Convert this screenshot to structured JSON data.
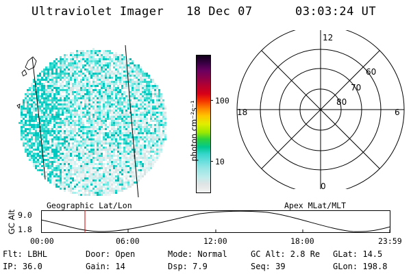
{
  "header": {
    "instrument": "Ultraviolet Imager",
    "date": "18 Dec 07",
    "time": "03:03:24 UT"
  },
  "image_panel": {
    "caption": "Geographic Lat/Lon",
    "pixel_palette": [
      "#00c8c0",
      "#30d8cc",
      "#52e2d8",
      "#7eeae6",
      "#a8f0ee",
      "#cdf4f2",
      "#e4f2f2",
      "#d8e4e4",
      "#f0f4f4",
      "#14b8ac"
    ]
  },
  "colorbar": {
    "unit_label": "photon cm⁻²s⁻¹",
    "ticks": [
      "100",
      "10"
    ],
    "colors": [
      "#f2f2f2",
      "#e0e4e4",
      "#c0ecec",
      "#9ce6e6",
      "#6ee0de",
      "#36d6cc",
      "#00c890",
      "#30d238",
      "#9ee800",
      "#e2ee00",
      "#ffc400",
      "#ff8800",
      "#f53200",
      "#d80018",
      "#b40030",
      "#900048",
      "#6a0060",
      "#3c0046",
      "#100018"
    ]
  },
  "polar_panel": {
    "caption": "Apex MLat/MLT",
    "mlt_labels": {
      "top": "12",
      "left": "18",
      "right": "6",
      "bottom": "0"
    },
    "lat_labels": [
      "60",
      "70",
      "80"
    ]
  },
  "timeline": {
    "ylabel": "GC Alt",
    "ytick_top": "9.0",
    "ytick_bottom": "1.8",
    "xticks": [
      "00:00",
      "06:00",
      "12:00",
      "18:00",
      "23:59"
    ],
    "marker_color": "#cc0000"
  },
  "status": {
    "filter": "Flt: LBHL",
    "ip": "IP: 36.0",
    "door": "Door: Open",
    "gain": "Gain: 14",
    "mode": "Mode: Normal",
    "dsp": "Dsp:    7.9",
    "gc_alt": "GC Alt: 2.8 Re",
    "seq": "Seq: 39",
    "glat": "GLat:  14.5",
    "glon": "GLon: 198.8"
  }
}
